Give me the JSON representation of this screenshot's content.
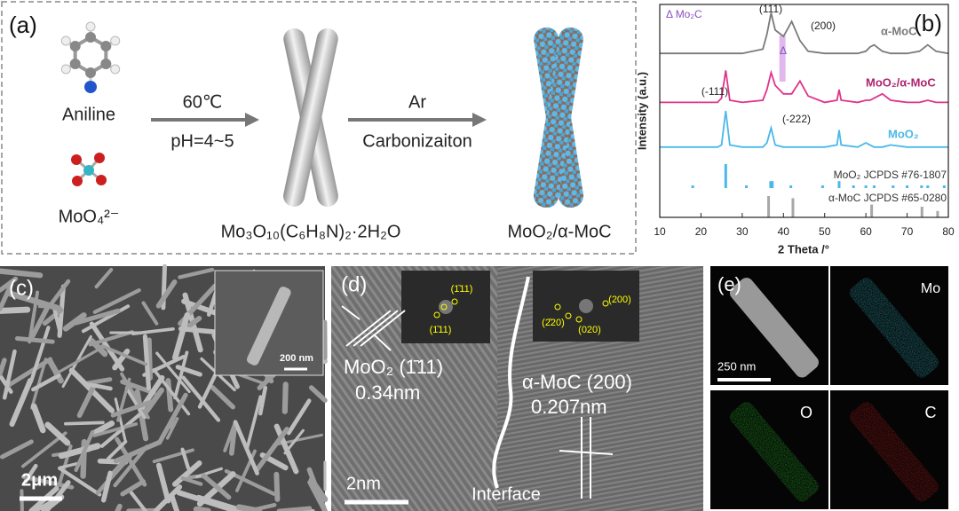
{
  "panel_a": {
    "label": "(a)",
    "aniline": "Aniline",
    "molybdate": "MoO₄²⁻",
    "step1_top": "60℃",
    "step1_bottom": "pH=4~5",
    "step2_top": "Ar",
    "step2_bottom": "Carbonizaiton",
    "intermediate": "Mo₃O₁₀(C₆H₈N)₂·2H₂O",
    "product": "MoO₂/α-MoC"
  },
  "chart_data": {
    "type": "line",
    "panel_label": "(b)",
    "xlabel": "2 Theta /°",
    "ylabel": "Intensity (a.u.)",
    "xlim": [
      10,
      80
    ],
    "xticks": [
      10,
      20,
      30,
      40,
      50,
      60,
      70,
      80
    ],
    "ylim": [
      0,
      100
    ],
    "x": [
      10,
      15,
      20,
      24,
      25,
      26,
      27,
      30,
      35,
      36,
      37,
      38,
      40,
      42,
      44,
      46,
      50,
      53,
      53.5,
      54,
      58,
      60,
      61,
      62,
      64,
      66,
      70,
      73,
      75,
      77,
      80
    ],
    "series": [
      {
        "name": "α-MoC",
        "color": "#7a7a7a",
        "values": [
          77,
          77,
          77,
          77,
          77,
          77,
          77,
          77,
          79,
          86,
          96,
          88,
          85,
          92,
          83,
          78,
          77,
          77,
          77,
          77,
          77,
          78,
          80,
          81,
          78,
          77,
          77,
          78,
          81,
          78,
          77
        ]
      },
      {
        "name": "MoO₂/α-MoC",
        "color": "#e0338a",
        "values": [
          54,
          54,
          54,
          54,
          56,
          69,
          55,
          54,
          55,
          60,
          68,
          62,
          58,
          58,
          64,
          57,
          54,
          55,
          60,
          55,
          54,
          55,
          55,
          56,
          58,
          55,
          54,
          54,
          55,
          54,
          54
        ]
      },
      {
        "name": "MoO₂",
        "color": "#4ab8e8",
        "values": [
          33,
          33,
          33,
          33,
          34,
          50,
          34,
          33,
          33,
          35,
          42,
          34,
          33,
          33,
          33,
          33,
          33,
          34,
          41,
          34,
          33,
          35,
          34,
          33,
          33,
          34,
          33,
          33,
          33,
          33,
          33
        ]
      }
    ],
    "reference_series": [
      {
        "name": "MoO₂ JCPDS #76-1807",
        "color": "#4ab8e8",
        "x": [
          18,
          26,
          31,
          36.9,
          37.3,
          41.8,
          49.5,
          53.5,
          57,
          60,
          62,
          66.6,
          70,
          73.5,
          75,
          79
        ],
        "values": [
          15,
          25,
          15,
          17,
          17,
          15,
          15,
          17,
          15,
          15,
          15,
          15,
          15,
          15,
          15,
          15
        ]
      },
      {
        "name": "α-MoC JCPDS #65-0280",
        "color": "#a8a8a8",
        "x": [
          36.4,
          42.3,
          61.4,
          73.6,
          77.4
        ],
        "values": [
          10,
          9,
          6,
          5,
          3
        ]
      }
    ],
    "highlight_x": [
      39,
      40.5
    ],
    "annotations": {
      "mo2c": "Δ Mo₂C",
      "mo2c_marker": "Δ",
      "p111": "(111)",
      "p200": "(200)",
      "pm111": "(-111)",
      "pm222": "(-222)"
    }
  },
  "panel_c": {
    "label": "(c)",
    "inset_scale": "200 nm",
    "scale": "2μm"
  },
  "panel_d": {
    "label": "(d)",
    "fft1": [
      "(1̄11)",
      "(1̄11)"
    ],
    "fft2": [
      "(200)",
      "(2̄20)",
      "(020)"
    ],
    "moo2_plane": "MoO₂ (1̄11)",
    "moo2_spacing": "0.34nm",
    "moc_plane": "α-MoC (200)",
    "moc_spacing": "0.207nm",
    "interface": "Interface",
    "scale": "2nm"
  },
  "panel_e": {
    "label": "(e)",
    "scale": "250 nm",
    "maps": [
      "Mo",
      "O",
      "C"
    ]
  }
}
